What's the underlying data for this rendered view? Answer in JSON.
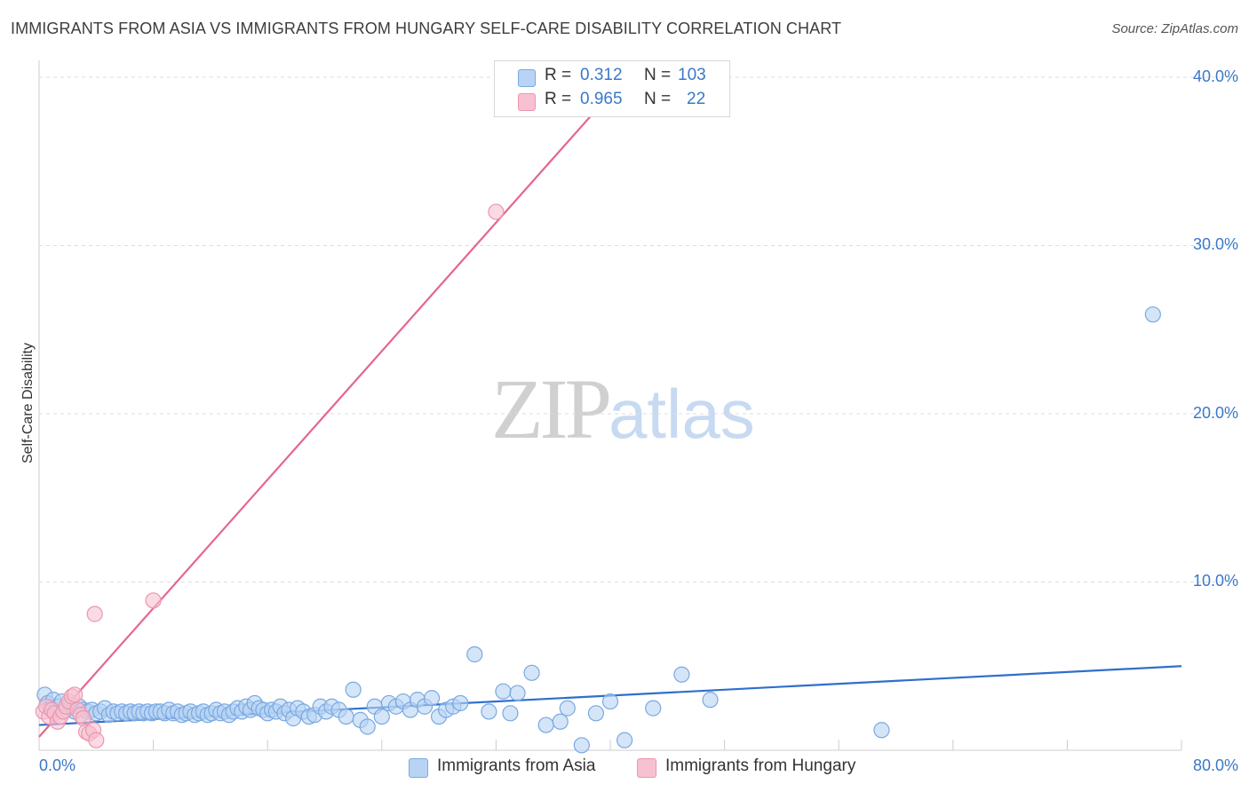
{
  "title": "IMMIGRANTS FROM ASIA VS IMMIGRANTS FROM HUNGARY SELF-CARE DISABILITY CORRELATION CHART",
  "source": "Source: ZipAtlas.com",
  "watermark": {
    "zip": "ZIP",
    "atlas": "atlas"
  },
  "legend": {
    "asia": {
      "r_label": "R =",
      "r_value": "0.312",
      "n_label": "N =",
      "n_value": "103"
    },
    "hungary": {
      "r_label": "R =",
      "r_value": "0.965",
      "n_label": "N =",
      "n_value": "22"
    }
  },
  "colors": {
    "asia_fill": "#b8d3f4",
    "asia_stroke": "#7aa8e2",
    "asia_line": "#2f6fcc",
    "hungary_fill": "#f7c1d1",
    "hungary_stroke": "#eb96b0",
    "hungary_line": "#e5668e",
    "tick": "#3a78c9",
    "grid": "#dddddd"
  },
  "chart_data": {
    "type": "scatter",
    "title": "IMMIGRANTS FROM ASIA VS IMMIGRANTS FROM HUNGARY SELF-CARE DISABILITY CORRELATION CHART",
    "xlabel": "",
    "ylabel": "Self-Care Disability",
    "xlim": [
      0,
      80
    ],
    "ylim": [
      0,
      41
    ],
    "x_tick_labels": [
      "0.0%",
      "80.0%"
    ],
    "y_ticks": [
      10,
      20,
      30,
      40
    ],
    "y_tick_labels": [
      "10.0%",
      "20.0%",
      "30.0%",
      "40.0%"
    ],
    "grid": true,
    "series": [
      {
        "name": "Immigrants from Asia",
        "points": [
          [
            0.4,
            3.3
          ],
          [
            0.6,
            2.8
          ],
          [
            0.8,
            2.5
          ],
          [
            1.0,
            3.0
          ],
          [
            1.3,
            2.6
          ],
          [
            1.6,
            2.9
          ],
          [
            1.9,
            2.4
          ],
          [
            2.2,
            2.7
          ],
          [
            2.5,
            2.3
          ],
          [
            2.8,
            2.6
          ],
          [
            3.1,
            2.4
          ],
          [
            3.4,
            2.3
          ],
          [
            3.7,
            2.4
          ],
          [
            4.0,
            2.2
          ],
          [
            4.3,
            2.3
          ],
          [
            4.6,
            2.5
          ],
          [
            4.9,
            2.1
          ],
          [
            5.2,
            2.3
          ],
          [
            5.5,
            2.2
          ],
          [
            5.8,
            2.3
          ],
          [
            6.1,
            2.2
          ],
          [
            6.4,
            2.3
          ],
          [
            6.7,
            2.2
          ],
          [
            7.0,
            2.3
          ],
          [
            7.3,
            2.2
          ],
          [
            7.6,
            2.3
          ],
          [
            7.9,
            2.2
          ],
          [
            8.2,
            2.3
          ],
          [
            8.5,
            2.3
          ],
          [
            8.8,
            2.2
          ],
          [
            9.1,
            2.4
          ],
          [
            9.4,
            2.2
          ],
          [
            9.7,
            2.3
          ],
          [
            10.0,
            2.1
          ],
          [
            10.3,
            2.2
          ],
          [
            10.6,
            2.3
          ],
          [
            10.9,
            2.1
          ],
          [
            11.2,
            2.2
          ],
          [
            11.5,
            2.3
          ],
          [
            11.8,
            2.1
          ],
          [
            12.1,
            2.2
          ],
          [
            12.4,
            2.4
          ],
          [
            12.7,
            2.2
          ],
          [
            13.0,
            2.3
          ],
          [
            13.3,
            2.1
          ],
          [
            13.6,
            2.3
          ],
          [
            13.9,
            2.5
          ],
          [
            14.2,
            2.3
          ],
          [
            14.5,
            2.6
          ],
          [
            14.8,
            2.4
          ],
          [
            15.1,
            2.8
          ],
          [
            15.4,
            2.5
          ],
          [
            15.7,
            2.4
          ],
          [
            16.0,
            2.2
          ],
          [
            16.3,
            2.4
          ],
          [
            16.6,
            2.3
          ],
          [
            16.9,
            2.6
          ],
          [
            17.2,
            2.2
          ],
          [
            17.5,
            2.4
          ],
          [
            17.8,
            1.9
          ],
          [
            18.1,
            2.5
          ],
          [
            18.5,
            2.3
          ],
          [
            18.9,
            2.0
          ],
          [
            19.3,
            2.1
          ],
          [
            19.7,
            2.6
          ],
          [
            20.1,
            2.3
          ],
          [
            20.5,
            2.6
          ],
          [
            21.0,
            2.4
          ],
          [
            21.5,
            2.0
          ],
          [
            22.0,
            3.6
          ],
          [
            22.5,
            1.8
          ],
          [
            23.0,
            1.4
          ],
          [
            23.5,
            2.6
          ],
          [
            24.0,
            2.0
          ],
          [
            24.5,
            2.8
          ],
          [
            25.0,
            2.6
          ],
          [
            25.5,
            2.9
          ],
          [
            26.0,
            2.4
          ],
          [
            26.5,
            3.0
          ],
          [
            27.0,
            2.6
          ],
          [
            27.5,
            3.1
          ],
          [
            28.0,
            2.0
          ],
          [
            28.5,
            2.4
          ],
          [
            29.0,
            2.6
          ],
          [
            29.5,
            2.8
          ],
          [
            30.5,
            5.7
          ],
          [
            31.5,
            2.3
          ],
          [
            32.5,
            3.5
          ],
          [
            33.5,
            3.4
          ],
          [
            34.5,
            4.6
          ],
          [
            35.5,
            1.5
          ],
          [
            36.5,
            1.7
          ],
          [
            37.0,
            2.5
          ],
          [
            38.0,
            0.3
          ],
          [
            39.0,
            2.2
          ],
          [
            40.0,
            2.9
          ],
          [
            41.0,
            0.6
          ],
          [
            43.0,
            2.5
          ],
          [
            45.0,
            4.5
          ],
          [
            47.0,
            3.0
          ],
          [
            59.0,
            1.2
          ],
          [
            78.0,
            25.9
          ],
          [
            33.0,
            2.2
          ]
        ]
      },
      {
        "name": "Immigrants from Hungary",
        "points": [
          [
            0.3,
            2.3
          ],
          [
            0.5,
            2.6
          ],
          [
            0.7,
            2.0
          ],
          [
            0.9,
            2.4
          ],
          [
            1.1,
            2.2
          ],
          [
            1.3,
            1.7
          ],
          [
            1.5,
            2.0
          ],
          [
            1.7,
            2.3
          ],
          [
            1.9,
            2.6
          ],
          [
            2.1,
            2.9
          ],
          [
            2.3,
            3.2
          ],
          [
            2.5,
            3.3
          ],
          [
            2.7,
            2.4
          ],
          [
            2.9,
            2.1
          ],
          [
            3.1,
            1.9
          ],
          [
            3.3,
            1.1
          ],
          [
            3.5,
            1.0
          ],
          [
            3.8,
            1.2
          ],
          [
            3.9,
            8.1
          ],
          [
            4.0,
            0.6
          ],
          [
            8.0,
            8.9
          ],
          [
            32.0,
            32.0
          ]
        ]
      }
    ],
    "trendlines": [
      {
        "series": "Immigrants from Asia",
        "from": [
          0,
          1.5
        ],
        "to": [
          80,
          5.0
        ]
      },
      {
        "series": "Immigrants from Hungary",
        "from": [
          0,
          0.8
        ],
        "to": [
          40,
          39.0
        ]
      }
    ]
  }
}
